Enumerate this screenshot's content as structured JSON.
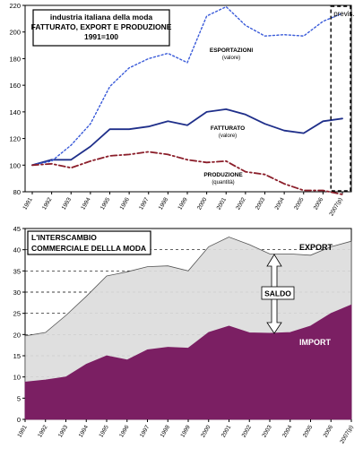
{
  "chart_data": [
    {
      "type": "line",
      "title_lines": [
        "industria italiana della moda",
        "FATTURATO, EXPORT E PRODUZIONE",
        "1991=100"
      ],
      "x": [
        "1991",
        "1992",
        "1993",
        "1994",
        "1995",
        "1996",
        "1997",
        "1998",
        "1999",
        "2000",
        "2001",
        "2002",
        "2003",
        "2004",
        "2005",
        "2006",
        "2007(p)"
      ],
      "ylim": [
        80,
        220
      ],
      "yticks": [
        80,
        100,
        120,
        140,
        160,
        180,
        200,
        220
      ],
      "grid": false,
      "forecast_label": "previs.",
      "forecast_from": "2006",
      "series": [
        {
          "name": "FATTURATO",
          "sublabel": "(valore)",
          "color": "#1f2f8a",
          "style": "solid",
          "values": [
            100,
            104,
            104,
            114,
            127,
            127,
            129,
            133,
            130,
            140,
            142,
            138,
            131,
            126,
            124,
            133,
            135
          ]
        },
        {
          "name": "ESPORTAZIONI",
          "sublabel": "(valore)",
          "color": "#3a5bd9",
          "style": "dotted",
          "values": [
            100,
            103,
            115,
            131,
            159,
            173,
            180,
            184,
            177,
            212,
            219,
            205,
            197,
            198,
            197,
            208,
            214
          ]
        },
        {
          "name": "PRODUZIONE",
          "sublabel": "(quantità)",
          "color": "#8b1e2a",
          "style": "dashdot",
          "values": [
            100,
            101,
            98,
            103,
            107,
            108,
            110,
            108,
            104,
            102,
            103,
            95,
            93,
            86,
            81,
            81,
            78
          ]
        }
      ]
    },
    {
      "type": "area",
      "title_lines": [
        "L'INTERSCAMBIO",
        "COMMERCIALE DELLLA MODA"
      ],
      "x": [
        "1991",
        "1992",
        "1993",
        "1994",
        "1995",
        "1996",
        "1997",
        "1998",
        "1999",
        "2000",
        "2001",
        "2002",
        "2003",
        "2004",
        "2005",
        "2006",
        "2007(p)"
      ],
      "ylim": [
        0,
        45
      ],
      "yticks": [
        0,
        5,
        10,
        15,
        20,
        25,
        30,
        35,
        40,
        45
      ],
      "grid": true,
      "annotations": {
        "saldo": "SALDO"
      },
      "series": [
        {
          "name": "EXPORT",
          "color": "#dcdcdc",
          "values": [
            19.7,
            20.5,
            24.5,
            29.0,
            33.8,
            34.8,
            36.0,
            36.2,
            35.0,
            40.7,
            43.0,
            41.2,
            39.0,
            39.0,
            38.7,
            40.7,
            42.0
          ]
        },
        {
          "name": "IMPORT",
          "color": "#7b1f63",
          "values": [
            8.8,
            9.3,
            10.0,
            13.0,
            15.0,
            14.0,
            16.4,
            17.0,
            16.8,
            20.5,
            22.0,
            20.4,
            20.3,
            20.5,
            22.0,
            25.0,
            27.0
          ]
        }
      ]
    }
  ]
}
